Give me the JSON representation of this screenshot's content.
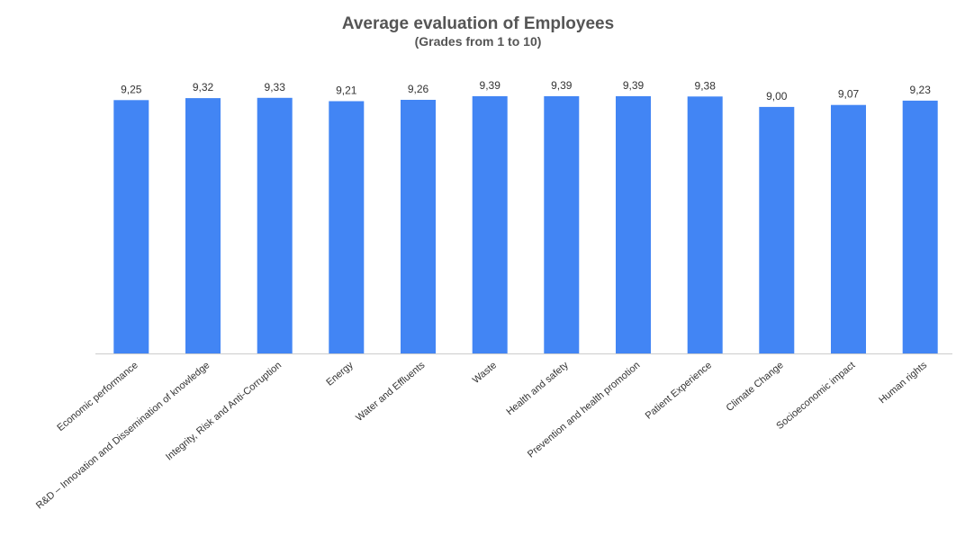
{
  "chart_data": {
    "type": "bar",
    "title": "Average evaluation of Employees",
    "subtitle": "(Grades from 1 to 10)",
    "xlabel": "",
    "ylabel": "",
    "grid": false,
    "categories": [
      "Economic performance",
      "R&D – Innovation and Dissemination of knowledge",
      "Integrity, Risk and Anti-Corruption",
      "Energy",
      "Water and Effluents",
      "Waste",
      "Health and safety",
      "Prevention and health promotion",
      "Patient Experience",
      "Climate Change",
      "Socioeconomic impact",
      "Human rights"
    ],
    "values": [
      9.25,
      9.32,
      9.33,
      9.21,
      9.26,
      9.39,
      9.39,
      9.39,
      9.38,
      9.0,
      9.07,
      9.23
    ],
    "value_labels": [
      "9,25",
      "9,32",
      "9,33",
      "9,21",
      "9,26",
      "9,39",
      "9,39",
      "9,39",
      "9,38",
      "9,00",
      "9,07",
      "9,23"
    ],
    "ylim": [
      0,
      9.39
    ],
    "bar_color": "#4285F4"
  }
}
